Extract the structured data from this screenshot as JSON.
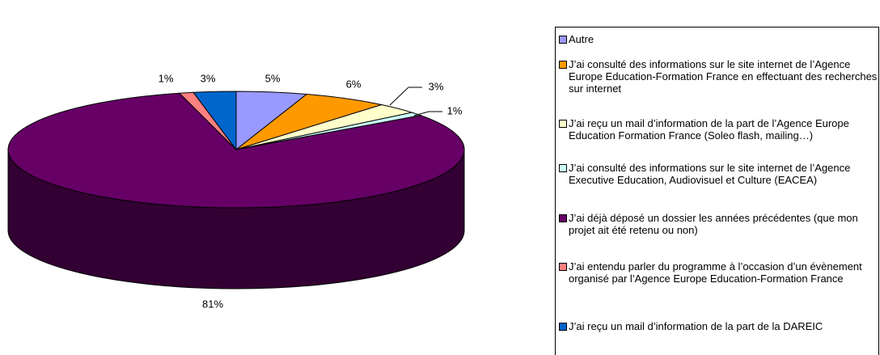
{
  "chart_data": {
    "type": "pie",
    "categories": [
      "Autre",
      "J’ai consulté des informations sur le site internet de l’Agence Europe Education-Formation France en effectuant des recherches sur internet",
      "J’ai reçu un mail d’information de la part de l’Agence Europe Education Formation France (Soleo flash, mailing…)",
      "J’ai consulté des informations sur le site internet de l’Agence Executive Education, Audiovisuel et Culture (EACEA)",
      "J’ai déjà déposé un dossier les années précédentes (que mon projet ait été retenu ou non)",
      "J’ai entendu parler du programme à l’occasion d’un évènement organisé par l’Agence Europe Education-Formation France",
      "J’ai reçu un mail d’information de la part de la DAREIC"
    ],
    "values": [
      5,
      6,
      3,
      1,
      81,
      1,
      3
    ],
    "value_labels": [
      "5%",
      "6%",
      "3%",
      "1%",
      "81%",
      "1%",
      "3%"
    ],
    "colors": [
      "#9999ff",
      "#ff9900",
      "#ffffcc",
      "#ccffff",
      "#660066",
      "#ff8080",
      "#0066cc"
    ]
  }
}
